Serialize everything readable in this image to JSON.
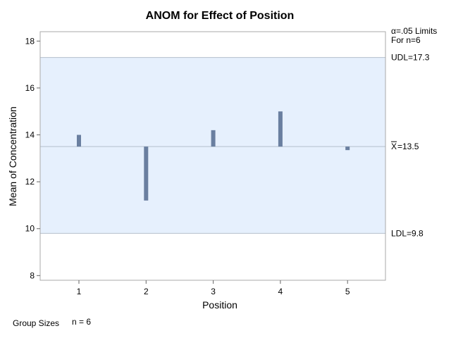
{
  "chart_data": {
    "type": "bar",
    "title": "ANOM for Effect of Position",
    "xlabel": "Position",
    "ylabel": "Mean of Concentration",
    "categories": [
      "1",
      "2",
      "3",
      "4",
      "5"
    ],
    "center": 13.5,
    "values": [
      14.0,
      11.2,
      14.2,
      15.0,
      13.35
    ],
    "ylim": [
      7.8,
      18.4
    ],
    "yticks": [
      "8",
      "10",
      "12",
      "14",
      "16",
      "18"
    ],
    "limits": {
      "header_line1": "α=.05 Limits",
      "header_line2": "For n=6",
      "udl_value": 17.3,
      "udl_label": "UDL=17.3",
      "center_label": "=13.5",
      "center_symbol": "X",
      "ldl_value": 9.8,
      "ldl_label": "LDL=9.8"
    },
    "footer": {
      "label": "Group Sizes",
      "value": "n = 6"
    },
    "colors": {
      "band": "#e6f0fd",
      "bar": "#6a7fa0",
      "limit_line": "#b4bfcc",
      "frame": "#aaaaaa"
    },
    "grid": false
  }
}
